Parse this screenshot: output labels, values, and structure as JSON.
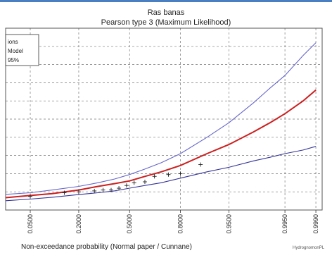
{
  "chart_data": {
    "type": "line",
    "title": "Ras banas",
    "subtitle": "Pearson type 3 (Maximum Likelihood)",
    "xlabel": "Non-exceedance probability (Normal paper / Cunnane)",
    "ylabel": "",
    "x_scale": "normal-probability",
    "xlim": [
      0.02,
      0.9993
    ],
    "ylim": [
      0,
      10
    ],
    "grid": true,
    "x_ticks": [
      "0.0500",
      "0.2000",
      "0.5000",
      "0.8000",
      "0.9500",
      "0.9950",
      "0.9990"
    ],
    "x_tick_values": [
      0.05,
      0.2,
      0.5,
      0.8,
      0.95,
      0.995,
      0.999
    ],
    "legend": {
      "placement": "top-left",
      "entries": [
        "ions",
        "Model",
        "95%"
      ]
    },
    "series": [
      {
        "role": "fitted",
        "color": "#cc1f1f",
        "x": [
          0.001,
          0.01,
          0.05,
          0.1,
          0.2,
          0.3,
          0.4,
          0.5,
          0.6,
          0.7,
          0.8,
          0.9,
          0.95,
          0.98,
          0.99,
          0.995,
          0.998,
          0.999
        ],
        "y": [
          0.4,
          0.6,
          0.8,
          0.9,
          1.1,
          1.3,
          1.45,
          1.6,
          1.85,
          2.1,
          2.45,
          3.1,
          3.6,
          4.3,
          4.8,
          5.3,
          6.0,
          6.6
        ]
      },
      {
        "role": "upper-95",
        "color": "#6666cc",
        "x": [
          0.001,
          0.01,
          0.05,
          0.1,
          0.2,
          0.3,
          0.4,
          0.5,
          0.6,
          0.7,
          0.8,
          0.9,
          0.95,
          0.98,
          0.99,
          0.995,
          0.998,
          0.999
        ],
        "y": [
          0.6,
          0.8,
          0.95,
          1.1,
          1.3,
          1.5,
          1.7,
          1.95,
          2.25,
          2.6,
          3.1,
          4.0,
          4.8,
          5.9,
          6.7,
          7.4,
          8.5,
          9.2
        ]
      },
      {
        "role": "lower-95",
        "color": "#333399",
        "x": [
          0.001,
          0.01,
          0.05,
          0.1,
          0.2,
          0.3,
          0.4,
          0.5,
          0.6,
          0.7,
          0.8,
          0.9,
          0.95,
          0.98,
          0.99,
          0.995,
          0.998,
          0.999
        ],
        "y": [
          0.25,
          0.45,
          0.6,
          0.7,
          0.85,
          0.95,
          1.05,
          1.2,
          1.35,
          1.5,
          1.75,
          2.1,
          2.35,
          2.7,
          2.9,
          3.1,
          3.3,
          3.5
        ]
      }
    ],
    "observations": {
      "x": [
        0.05,
        0.14,
        0.2,
        0.28,
        0.33,
        0.38,
        0.43,
        0.48,
        0.53,
        0.6,
        0.66,
        0.74,
        0.8,
        0.88
      ],
      "y": [
        0.75,
        0.95,
        1.0,
        1.05,
        1.1,
        1.1,
        1.2,
        1.35,
        1.5,
        1.55,
        1.85,
        1.95,
        2.0,
        2.5
      ]
    },
    "credit": "HydrognomonPL"
  }
}
